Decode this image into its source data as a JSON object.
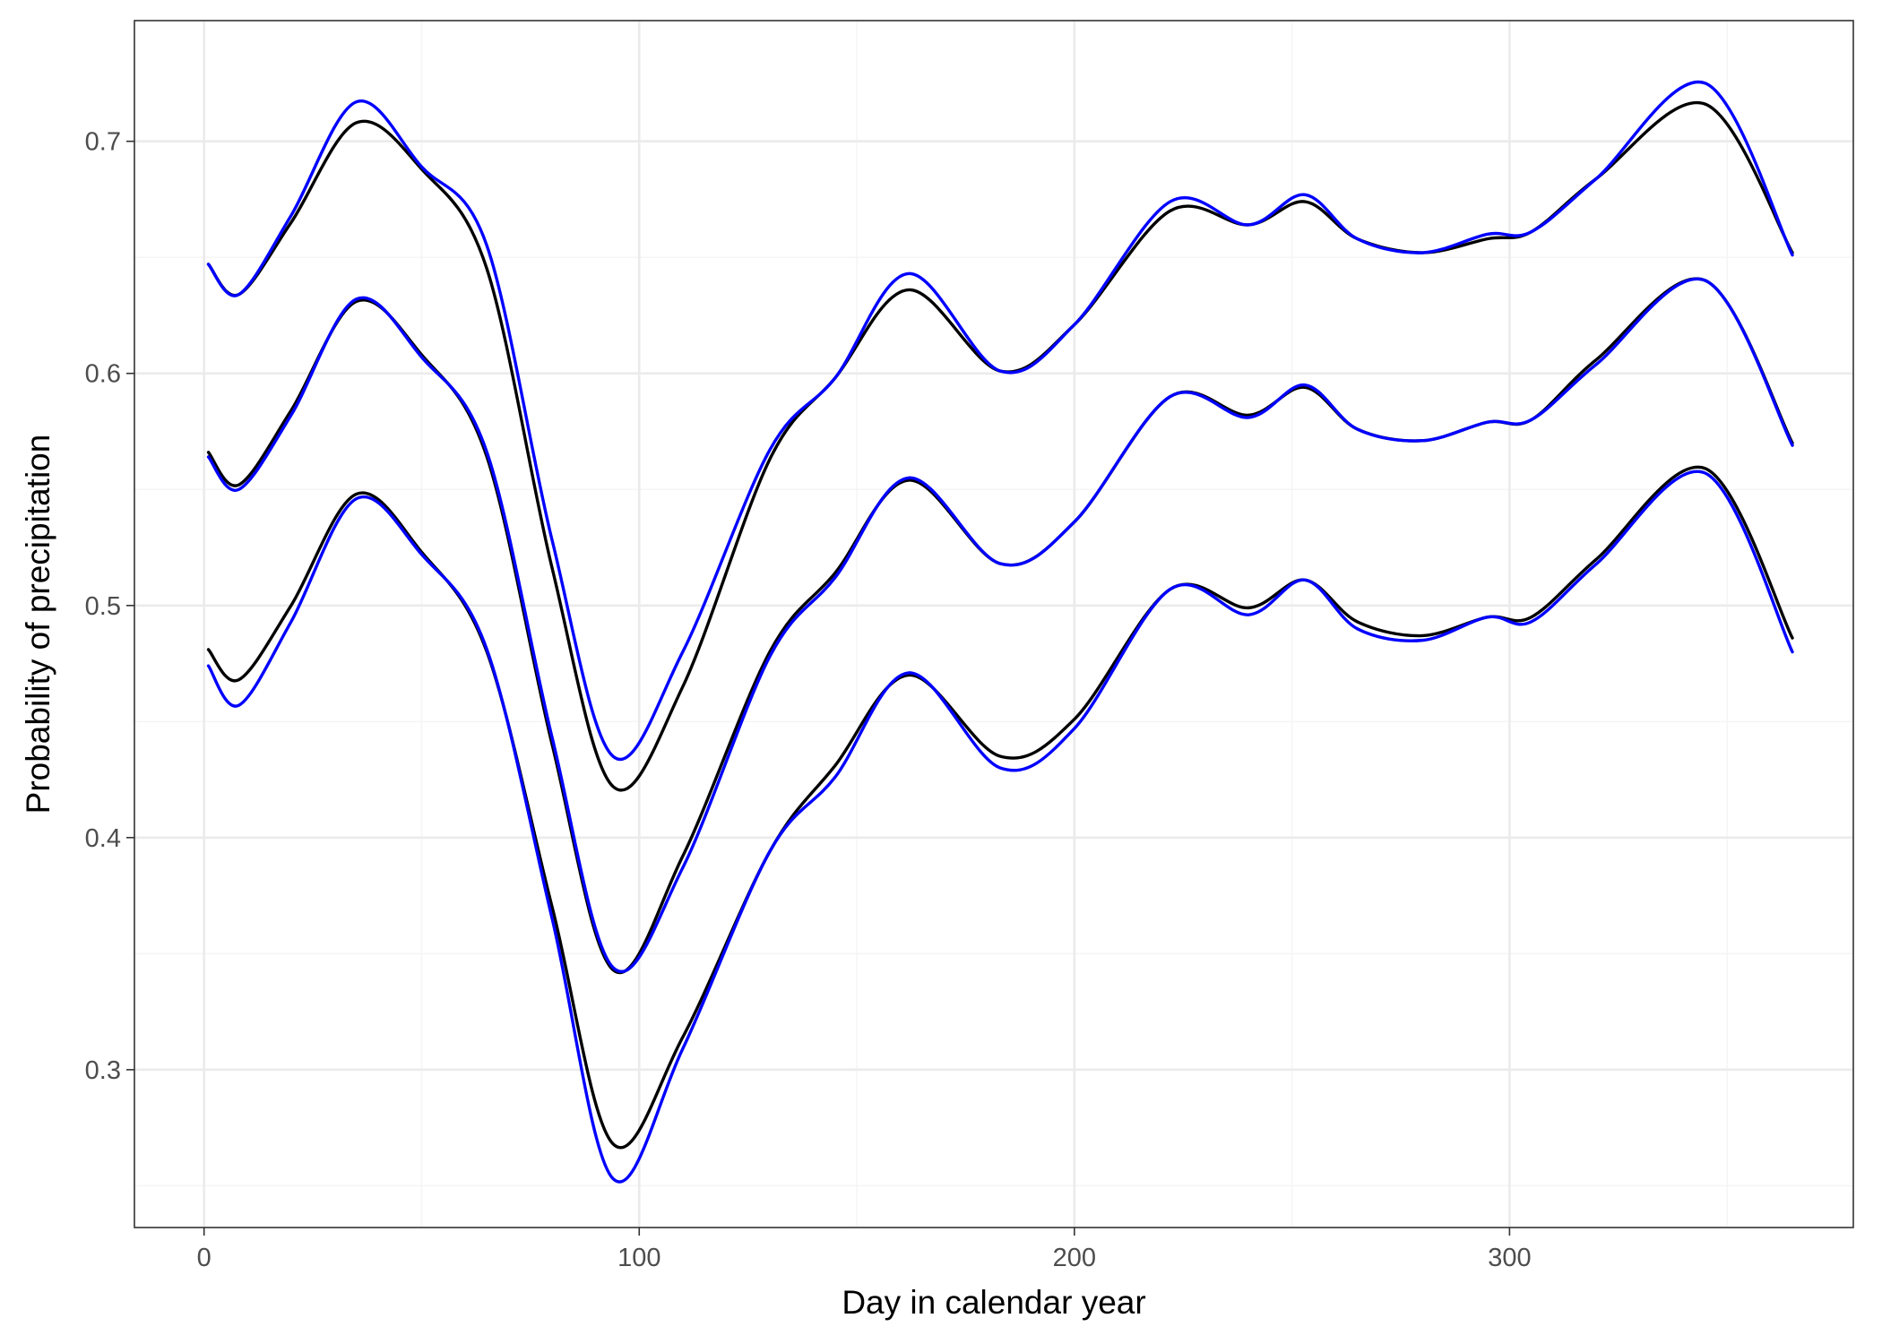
{
  "chart_data": {
    "type": "line",
    "title": "",
    "xlabel": "Day in calendar year",
    "ylabel": "Probability of precipitation",
    "xlim": [
      -16,
      379
    ],
    "ylim": [
      0.232,
      0.752
    ],
    "x_ticks": [
      0,
      100,
      200,
      300
    ],
    "x_tick_labels": [
      "0",
      "100",
      "200",
      "300"
    ],
    "x_minor_ticks": [
      50,
      150,
      250,
      350
    ],
    "y_ticks": [
      0.3,
      0.4,
      0.5,
      0.6,
      0.7
    ],
    "y_tick_labels": [
      "0.3",
      "0.4",
      "0.5",
      "0.6",
      "0.7"
    ],
    "y_minor_ticks": [
      0.25,
      0.35,
      0.45,
      0.55,
      0.65
    ],
    "grid": true,
    "legend": "none",
    "x": [
      1,
      8,
      20,
      35,
      50,
      65,
      80,
      94,
      110,
      130,
      145,
      162,
      183,
      200,
      222,
      240,
      253,
      265,
      280,
      295,
      305,
      320,
      345,
      365
    ],
    "series": [
      {
        "group": "upper",
        "color": "#000000",
        "values": [
          0.647,
          0.634,
          0.665,
          0.708,
          0.688,
          0.645,
          0.516,
          0.422,
          0.465,
          0.563,
          0.598,
          0.636,
          0.601,
          0.621,
          0.67,
          0.664,
          0.674,
          0.658,
          0.652,
          0.658,
          0.661,
          0.684,
          0.716,
          0.652
        ]
      },
      {
        "group": "upper",
        "color": "#0000ff",
        "values": [
          0.647,
          0.634,
          0.668,
          0.717,
          0.689,
          0.655,
          0.528,
          0.435,
          0.48,
          0.567,
          0.598,
          0.643,
          0.601,
          0.621,
          0.674,
          0.664,
          0.677,
          0.658,
          0.652,
          0.66,
          0.661,
          0.684,
          0.725,
          0.651
        ]
      },
      {
        "group": "middle",
        "color": "#000000",
        "values": [
          0.566,
          0.552,
          0.584,
          0.631,
          0.608,
          0.564,
          0.44,
          0.343,
          0.392,
          0.48,
          0.514,
          0.554,
          0.518,
          0.536,
          0.59,
          0.582,
          0.594,
          0.576,
          0.571,
          0.579,
          0.58,
          0.606,
          0.64,
          0.57
        ]
      },
      {
        "group": "middle",
        "color": "#0000ff",
        "values": [
          0.564,
          0.55,
          0.582,
          0.632,
          0.607,
          0.566,
          0.443,
          0.344,
          0.387,
          0.478,
          0.512,
          0.555,
          0.518,
          0.536,
          0.59,
          0.581,
          0.595,
          0.576,
          0.571,
          0.579,
          0.58,
          0.604,
          0.64,
          0.569
        ]
      },
      {
        "group": "lower",
        "color": "#000000",
        "values": [
          0.481,
          0.468,
          0.5,
          0.548,
          0.523,
          0.48,
          0.37,
          0.268,
          0.314,
          0.394,
          0.431,
          0.47,
          0.435,
          0.451,
          0.507,
          0.499,
          0.511,
          0.493,
          0.487,
          0.495,
          0.495,
          0.52,
          0.559,
          0.486
        ]
      },
      {
        "group": "lower",
        "color": "#0000ff",
        "values": [
          0.474,
          0.457,
          0.493,
          0.546,
          0.522,
          0.481,
          0.365,
          0.253,
          0.309,
          0.394,
          0.426,
          0.471,
          0.43,
          0.447,
          0.507,
          0.496,
          0.511,
          0.49,
          0.485,
          0.495,
          0.493,
          0.518,
          0.557,
          0.48
        ]
      }
    ]
  }
}
